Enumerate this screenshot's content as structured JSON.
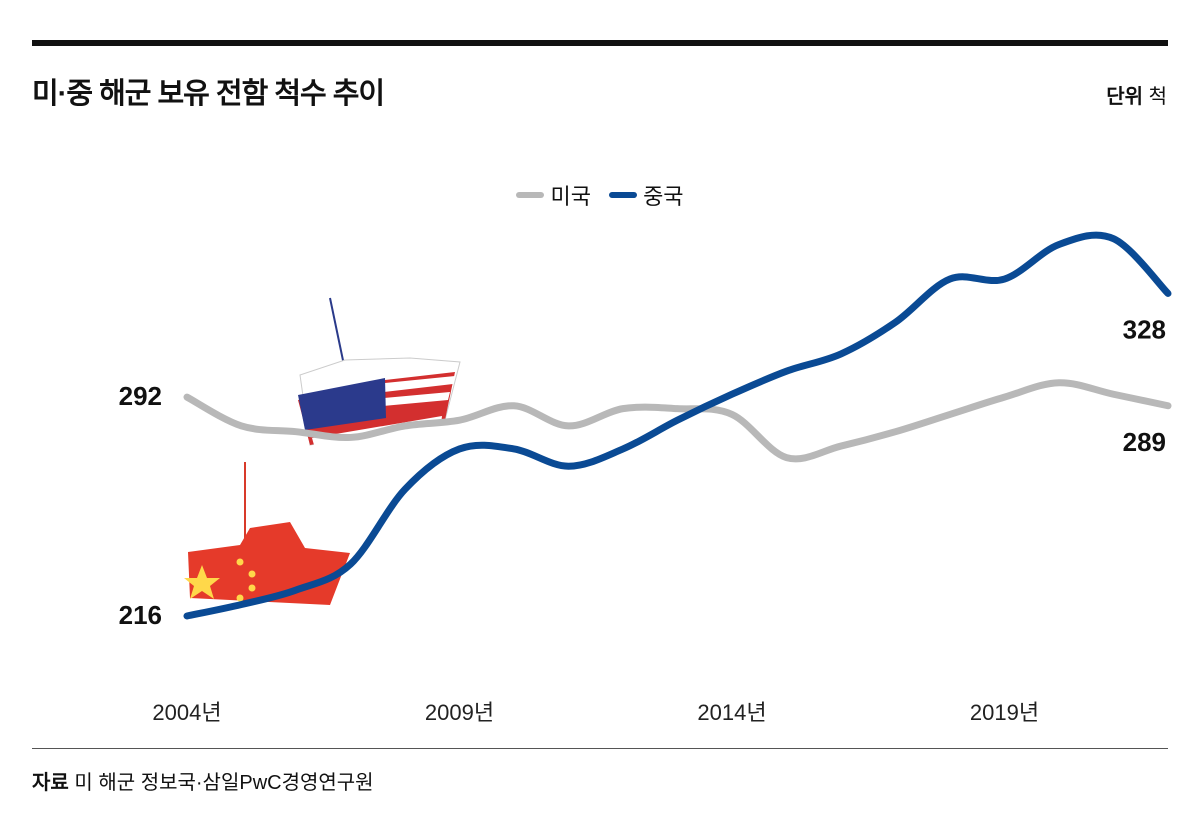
{
  "header": {
    "title": "미·중 해군 보유 전함 척수 추이",
    "unit_label": "단위",
    "unit_value": "척"
  },
  "source": {
    "label": "자료",
    "text": "미 해군 정보국·삼일PwC경영연구원"
  },
  "chart_data": {
    "type": "line",
    "title": "미·중 해군 보유 전함 척수 추이",
    "xlabel": "",
    "ylabel": "척",
    "x": [
      2004,
      2005,
      2006,
      2007,
      2008,
      2009,
      2010,
      2011,
      2012,
      2013,
      2014,
      2015,
      2016,
      2017,
      2018,
      2019,
      2020,
      2021,
      2022
    ],
    "x_ticks": [
      {
        "value": 2004,
        "label": "2004년"
      },
      {
        "value": 2009,
        "label": "2009년"
      },
      {
        "value": 2014,
        "label": "2014년"
      },
      {
        "value": 2019,
        "label": "2019년"
      }
    ],
    "ylim": [
      200,
      360
    ],
    "grid": false,
    "legend_position": "top-center",
    "series": [
      {
        "name": "미국",
        "color": "#b8b8b8",
        "values": [
          292,
          282,
          280,
          278,
          282,
          284,
          289,
          282,
          288,
          288,
          286,
          271,
          275,
          280,
          286,
          292,
          297,
          293,
          289
        ],
        "labels": [
          {
            "index": 0,
            "text": "292"
          },
          {
            "index": 18,
            "text": "289"
          }
        ]
      },
      {
        "name": "중국",
        "color": "#0a4a94",
        "values": [
          216,
          220,
          225,
          234,
          260,
          274,
          274,
          268,
          274,
          284,
          293,
          301,
          307,
          318,
          333,
          333,
          345,
          347,
          328
        ],
        "labels": [
          {
            "index": 0,
            "text": "216"
          },
          {
            "index": 18,
            "text": "328"
          }
        ]
      }
    ]
  }
}
